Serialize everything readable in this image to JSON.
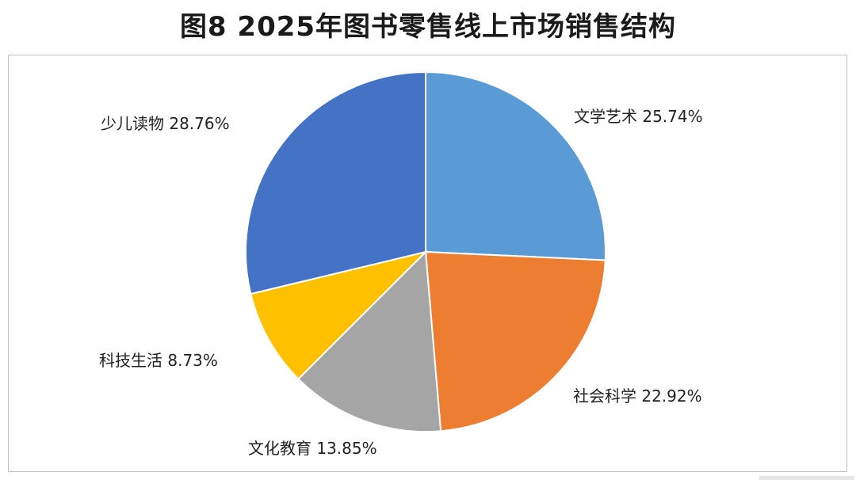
{
  "title": "图8  2025年图书零售线上市场销售结构",
  "chart_data": {
    "type": "pie",
    "title": "图8  2025年图书零售线上市场销售结构",
    "start_angle_deg": 0,
    "direction": "clockwise",
    "slices": [
      {
        "label": "文学艺术",
        "value": 25.74,
        "display": "文学艺术 25.74%",
        "color": "#5B9BD5",
        "label_pos": "top-right"
      },
      {
        "label": "社会科学",
        "value": 22.92,
        "display": "社会科学 22.92%",
        "color": "#ED7D31",
        "label_pos": "bottom-right"
      },
      {
        "label": "文化教育",
        "value": 13.85,
        "display": "文化教育 13.85%",
        "color": "#A5A5A5",
        "label_pos": "bottom"
      },
      {
        "label": "科技生活",
        "value": 8.73,
        "display": "科技生活 8.73%",
        "color": "#FFC000",
        "label_pos": "left"
      },
      {
        "label": "少儿读物",
        "value": 28.76,
        "display": "少儿读物 28.76%",
        "color": "#4472C4",
        "label_pos": "top-left"
      }
    ]
  }
}
